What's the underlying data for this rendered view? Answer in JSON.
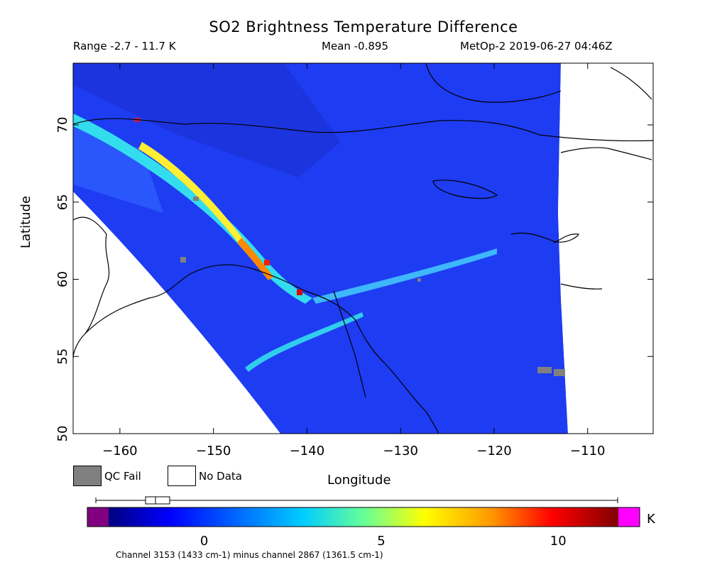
{
  "header": {
    "title": "SO2 Brightness Temperature Difference",
    "range": "Range -2.7 - 11.7 K",
    "mean": "Mean -0.895",
    "satellite": "MetOp-2 2019-06-27 04:46Z"
  },
  "axes": {
    "xlabel": "Longitude",
    "ylabel": "Latitude",
    "x_range": [
      -165,
      -103
    ],
    "y_range": [
      50,
      74
    ],
    "x_ticks": [
      -160,
      -150,
      -140,
      -130,
      -120,
      -110
    ],
    "y_ticks": [
      50,
      55,
      60,
      65,
      70
    ]
  },
  "legend": {
    "qc_fail": "QC Fail",
    "no_data": "No Data",
    "qc_color": "#808080",
    "no_data_color": "#ffffff"
  },
  "colorbar": {
    "unit": "K",
    "min": -2.7,
    "max": 11.7,
    "tick_values": [
      0,
      5,
      10
    ],
    "tick_labels": [
      "0",
      "5",
      "10"
    ],
    "underflow_color": "#800080",
    "overflow_color": "#ff00ff",
    "boxplot": {
      "whisker_low": -2.7,
      "q1": -1.5,
      "median": -1.0,
      "q3": -0.6,
      "whisker_high": 11.7
    }
  },
  "footnote": "Channel 3153 (1433 cm-1) minus channel 2867 (1361.5 cm-1)",
  "map_colors": {
    "background_field": "#1f3ff0",
    "plume_core": "#ffff33",
    "plume_hot": "#ff3300",
    "plume_edge": "#33ffcc",
    "coastline": "#000000",
    "no_data": "#ffffff"
  }
}
